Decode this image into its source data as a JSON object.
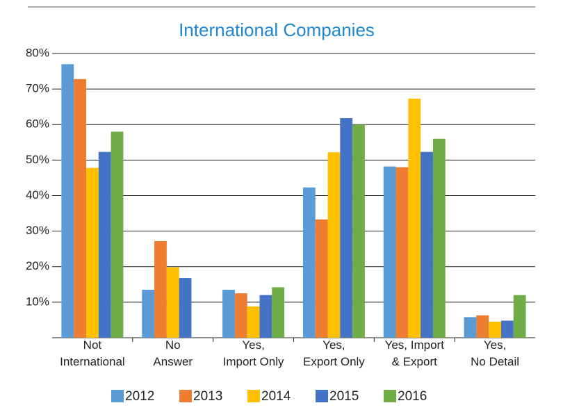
{
  "chart_data": {
    "type": "bar",
    "title": "International Companies",
    "categories": [
      "Not\nInternational",
      "No\nAnswer",
      "Yes,\nImport Only",
      "Yes,\nExport Only",
      "Yes, Import\n& Export",
      "Yes,\nNo Detail"
    ],
    "series": [
      {
        "name": "2012",
        "color": "#5b9bd5",
        "values": [
          77,
          13.5,
          13.5,
          42.3,
          48.2,
          5.8
        ]
      },
      {
        "name": "2013",
        "color": "#ed7d31",
        "values": [
          72.8,
          27.2,
          12.5,
          33.3,
          48,
          6.3
        ]
      },
      {
        "name": "2014",
        "color": "#ffc000",
        "values": [
          47.8,
          19.8,
          8.8,
          52.2,
          67.3,
          4.5
        ]
      },
      {
        "name": "2015",
        "color": "#4472c4",
        "values": [
          52.3,
          16.8,
          12,
          61.8,
          52.3,
          4.8
        ]
      },
      {
        "name": "2016",
        "color": "#70ad47",
        "values": [
          58,
          null,
          14.2,
          60,
          56,
          12
        ]
      }
    ],
    "ylim": [
      0,
      80
    ],
    "yticks": [
      {
        "value": 10,
        "label": "10%"
      },
      {
        "value": 20,
        "label": "20%"
      },
      {
        "value": 30,
        "label": "30%"
      },
      {
        "value": 40,
        "label": "40%"
      },
      {
        "value": 50,
        "label": "50%"
      },
      {
        "value": 60,
        "label": "60%"
      },
      {
        "value": 70,
        "label": "70%"
      },
      {
        "value": 80,
        "label": "80%"
      }
    ],
    "grid": true,
    "legend": "bottom"
  }
}
